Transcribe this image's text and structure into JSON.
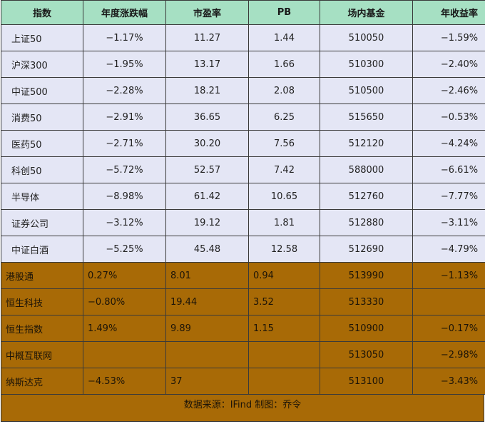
{
  "columns": [
    "指数",
    "年度涨跌幅",
    "市盈率",
    "PB",
    "场内基金",
    "年收益率"
  ],
  "rows": [
    {
      "group": "a",
      "cells": [
        "上证50",
        "−1.17%",
        "11.27",
        "1.44",
        "510050",
        "−1.59%"
      ]
    },
    {
      "group": "a",
      "cells": [
        "沪深300",
        "−1.95%",
        "13.17",
        "1.66",
        "510300",
        "−2.40%"
      ]
    },
    {
      "group": "a",
      "cells": [
        "中证500",
        "−2.28%",
        "18.21",
        "2.08",
        "510500",
        "−2.46%"
      ]
    },
    {
      "group": "a",
      "cells": [
        "消费50",
        "−2.91%",
        "36.65",
        "6.25",
        "515650",
        "−0.53%"
      ]
    },
    {
      "group": "a",
      "cells": [
        "医药50",
        "−2.71%",
        "30.20",
        "7.56",
        "512120",
        "−4.24%"
      ]
    },
    {
      "group": "a",
      "cells": [
        "科创50",
        "−5.72%",
        "52.57",
        "7.42",
        "588000",
        "−6.61%"
      ]
    },
    {
      "group": "a",
      "cells": [
        "半导体",
        "−8.98%",
        "61.42",
        "10.65",
        "512760",
        "−7.77%"
      ]
    },
    {
      "group": "a",
      "cells": [
        "证券公司",
        "−3.12%",
        "19.12",
        "1.81",
        "512880",
        "−3.11%"
      ]
    },
    {
      "group": "a",
      "cells": [
        "中证白酒",
        "−5.25%",
        "45.48",
        "12.58",
        "512690",
        "−4.79%"
      ]
    },
    {
      "group": "b",
      "cells": [
        "港股通",
        "0.27%",
        "8.01",
        "0.94",
        "513990",
        "−1.13%"
      ]
    },
    {
      "group": "b",
      "cells": [
        "恒生科技",
        "−0.80%",
        "19.44",
        "3.52",
        "513330",
        ""
      ]
    },
    {
      "group": "b",
      "cells": [
        "恒生指数",
        "1.49%",
        "9.89",
        "1.15",
        "510900",
        "−0.17%"
      ]
    },
    {
      "group": "b",
      "cells": [
        "中概互联网",
        "",
        "",
        "",
        "513050",
        "−2.98%"
      ]
    },
    {
      "group": "b",
      "cells": [
        "纳斯达克",
        "−4.53%",
        "37",
        "",
        "513100",
        "−3.43%"
      ]
    }
  ],
  "footer": "数据来源：IFind 制图：乔令",
  "colors": {
    "header_bg": "#a6e0c3",
    "group_a_bg": "#e4e6f5",
    "group_b_bg": "#a86a06"
  }
}
